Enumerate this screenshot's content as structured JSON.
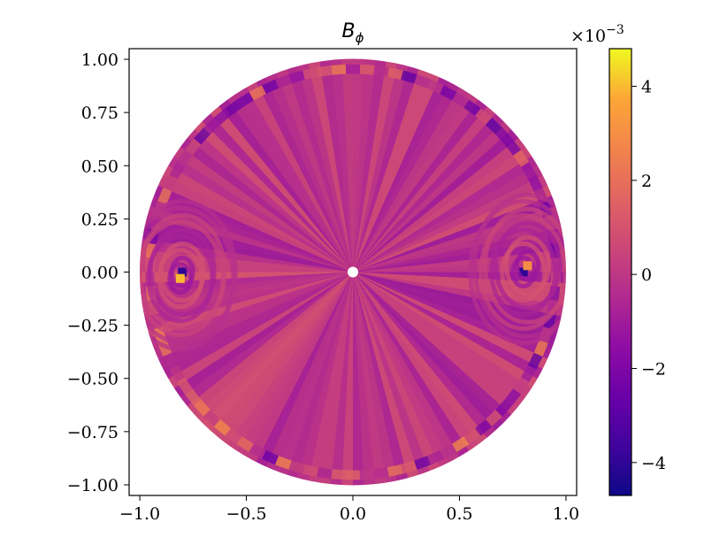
{
  "chart_data": {
    "type": "heatmap",
    "title": "B",
    "title_subscript": "ϕ",
    "xlabel": "",
    "ylabel": "",
    "xlim": [
      -1.05,
      1.05
    ],
    "ylim": [
      -1.05,
      1.05
    ],
    "xticks": [
      -1.0,
      -0.5,
      0.0,
      0.5,
      1.0
    ],
    "xtick_labels": [
      "−1.0",
      "−0.5",
      "0.0",
      "0.5",
      "1.0"
    ],
    "yticks": [
      1.0,
      0.75,
      0.5,
      0.25,
      0.0,
      -0.25,
      -0.5,
      -0.75,
      -1.0
    ],
    "ytick_labels": [
      "1.00",
      "0.75",
      "0.50",
      "0.25",
      "0.00",
      "−0.25",
      "−0.50",
      "−0.75",
      "−1.00"
    ],
    "grid": false,
    "colormap": "plasma",
    "colorbar": {
      "min": -0.0047,
      "max": 0.0048,
      "ticks": [
        4,
        2,
        0,
        -2,
        -4
      ],
      "tick_labels": [
        "4",
        "2",
        "0",
        "−2",
        "−4"
      ],
      "multiplier_base": "×10",
      "multiplier_exponent": "−3"
    },
    "domain_radius": 1.0,
    "hole_radius": 0.025,
    "background_value": 0.0,
    "hotspots": [
      {
        "x": -0.8,
        "y": 0.0,
        "value": -0.004
      },
      {
        "x": -0.81,
        "y": -0.03,
        "value": 0.004
      },
      {
        "x": 0.8,
        "y": 0.0,
        "value": -0.004
      },
      {
        "x": 0.82,
        "y": 0.03,
        "value": 0.003
      }
    ]
  }
}
